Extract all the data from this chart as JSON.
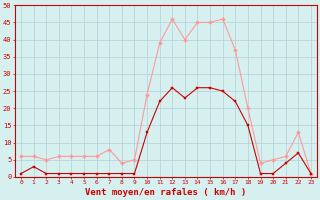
{
  "hours": [
    0,
    1,
    2,
    3,
    4,
    5,
    6,
    7,
    8,
    9,
    10,
    11,
    12,
    13,
    14,
    15,
    16,
    17,
    18,
    19,
    20,
    21,
    22,
    23
  ],
  "vent_moyen": [
    1,
    3,
    1,
    1,
    1,
    1,
    1,
    1,
    1,
    1,
    13,
    22,
    26,
    23,
    26,
    26,
    25,
    22,
    15,
    1,
    1,
    4,
    7,
    1
  ],
  "rafales": [
    6,
    6,
    5,
    6,
    6,
    6,
    6,
    8,
    4,
    5,
    24,
    39,
    46,
    40,
    45,
    45,
    46,
    37,
    20,
    4,
    5,
    6,
    13,
    1
  ],
  "bg_color": "#d6f0f0",
  "grid_color": "#b0d0d8",
  "line_moyen_color": "#cc0000",
  "line_rafales_color": "#ff9999",
  "xlabel": "Vent moyen/en rafales ( km/h )",
  "ylabel_ticks": [
    0,
    5,
    10,
    15,
    20,
    25,
    30,
    35,
    40,
    45,
    50
  ],
  "ylim": [
    0,
    50
  ],
  "xlim": [
    -0.5,
    23.5
  ]
}
